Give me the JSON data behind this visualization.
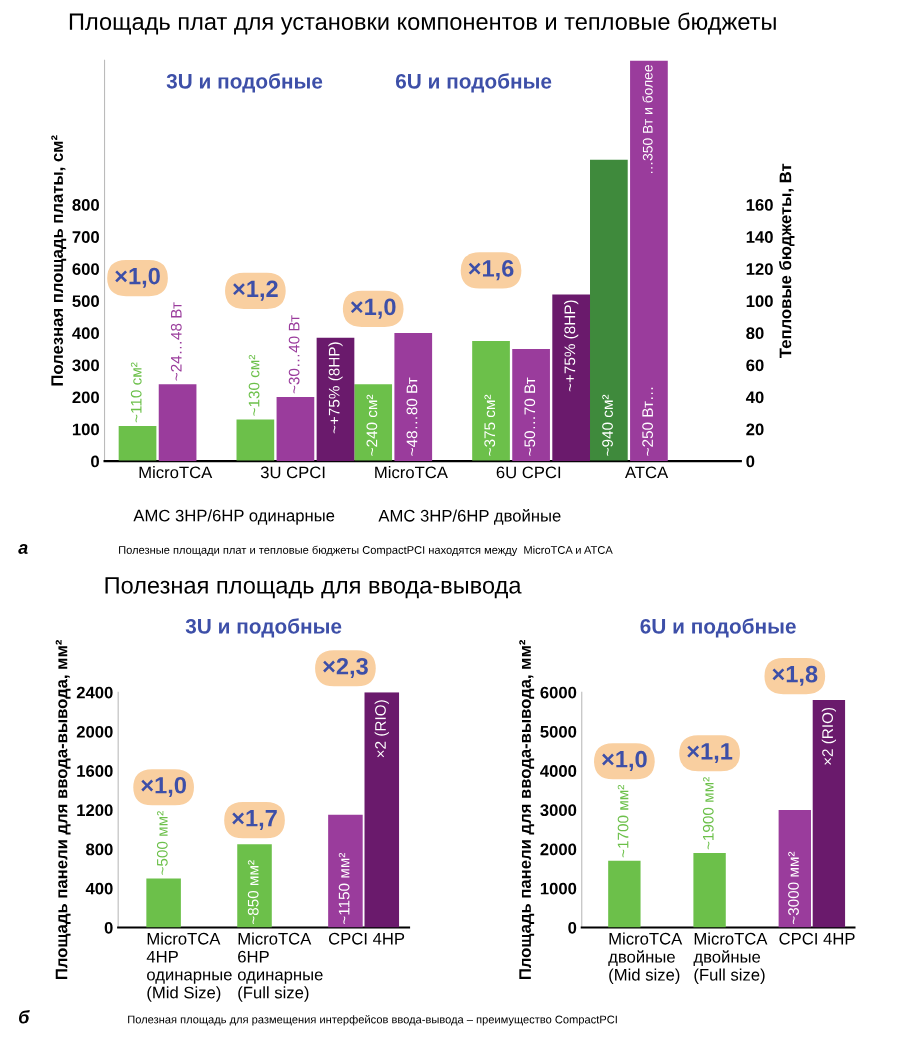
{
  "chart_data": [
    {
      "type": "bar",
      "title": "Площадь плат для установки компонентов и тепловые бюджеты",
      "ylabel": "Полезная площадь платы, см²",
      "y2label": "Тепловые бюджеты, Вт",
      "categories": [
        "MicroTCA",
        "3U CPCI",
        "MicroTCA",
        "6U CPCI",
        "ATCA"
      ],
      "ylim": [
        0,
        1250
      ],
      "yticks": [
        0,
        100,
        200,
        300,
        400,
        500,
        600,
        700,
        800
      ],
      "y2lim": [
        0,
        250
      ],
      "y2ticks": [
        0,
        20,
        40,
        60,
        80,
        100,
        120,
        140,
        160
      ],
      "series": [
        {
          "values": [
            110,
            130,
            240,
            375,
            940
          ],
          "colors": [
            "#6cc04a",
            "#6cc04a",
            "#6cc04a",
            "#6cc04a",
            "#3f8a3c"
          ],
          "value_labels": [
            "~110 см²",
            "~130 см²",
            "~240 см²",
            "~375 см²",
            "~940 см²"
          ]
        },
        {
          "axis": "y2",
          "color": "#9a3c9c",
          "values": [
            48,
            40,
            80,
            70,
            250
          ],
          "value_labels": [
            "~24…48 Вт",
            "~30…40 Вт",
            "~48…80 Вт",
            "~50…70 Вт",
            "~250 Вт…"
          ]
        },
        {
          "axis": "y2",
          "color": "#6a1a6c",
          "values": [
            null,
            77,
            null,
            104,
            null
          ]
        }
      ],
      "annotations": [
        "×1,0",
        "×1,2",
        "×1,0",
        "×1,6",
        "3U и подобные",
        "6U и подобные",
        "AMC 3HP/6HP одинарные",
        "AMC 3HP/6HP двойные",
        "~+75% (8HP)",
        "~+75% (8HP)",
        "…350 Вт и более",
        "а",
        "Полезные площади плат и тепловые бюджеты CompactPCI находятся между  MicroTCA и ATCA"
      ]
    },
    {
      "type": "bar",
      "title": "Полезная площадь для ввода-вывода",
      "ylabel": "Площадь панели для ввода-вывода, мм²",
      "categories": [
        "MicroTCA\n4HP\nодинарные\n(Mid Size)",
        "MicroTCA\n6HP\nодинарные\n(Full size)",
        "CPCI 4HP"
      ],
      "ylim": [
        0,
        2400
      ],
      "yticks": [
        0,
        400,
        800,
        1200,
        1600,
        2000,
        2400
      ],
      "series": [
        {
          "values": [
            500,
            850,
            1150
          ],
          "colors": [
            "#6cc04a",
            "#6cc04a",
            "#9a3c9c"
          ],
          "value_labels": [
            "~500 мм²",
            "~850 мм²",
            "~1150 мм²"
          ]
        },
        {
          "color": "#6a1a6c",
          "values": [
            null,
            null,
            2400
          ]
        }
      ],
      "annotations": [
        "×1,0",
        "×1,7",
        "×2,3",
        "×2 (RIO)",
        "3U и подобные",
        "б",
        "Полезная площадь для размещения интерфейсов ввода-вывода – преимущество CompactPCI"
      ]
    },
    {
      "type": "bar",
      "ylabel": "Площадь панели для ввода-вывода, мм²",
      "categories": [
        "MicroTCA\nдвойные\n(Mid size)",
        "MicroTCA\nдвойные\n(Full size)",
        "CPCI 4HP"
      ],
      "ylim": [
        0,
        6000
      ],
      "yticks": [
        0,
        1000,
        2000,
        3000,
        4000,
        5000,
        6000
      ],
      "series": [
        {
          "values": [
            1700,
            1900,
            3000
          ],
          "colors": [
            "#6cc04a",
            "#6cc04a",
            "#9a3c9c"
          ],
          "value_labels": [
            "~1700 мм²",
            "~1900 мм²",
            "~3000 мм²"
          ]
        },
        {
          "color": "#6a1a6c",
          "values": [
            null,
            null,
            5800
          ]
        }
      ],
      "annotations": [
        "×1,0",
        "×1,1",
        "×1,8",
        "×2 (RIO)",
        "6U и подобные"
      ]
    }
  ]
}
